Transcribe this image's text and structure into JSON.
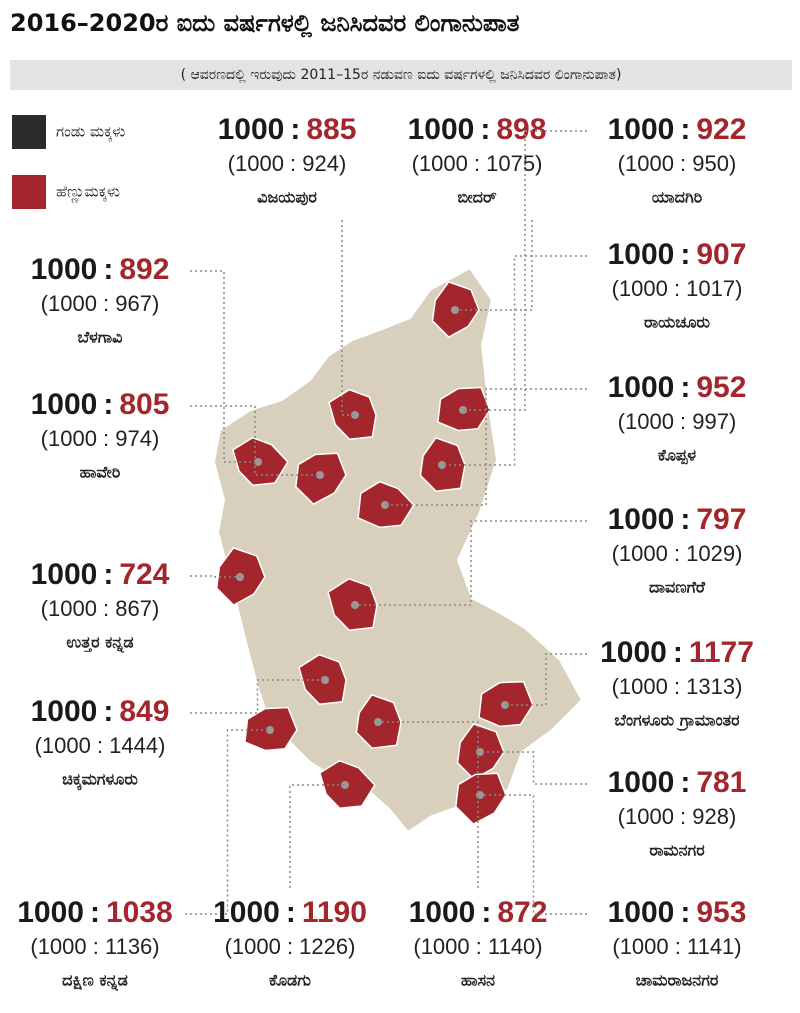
{
  "header": {
    "title": "2016–2020ರ ಐದು ವರ್ಷಗಳಲ್ಲಿ ಜನಿಸಿದವರ ಲಿಂಗಾನುಪಾತ",
    "subtitle": "( ಆವರಣದಲ್ಲಿ ಇರುವುದು 2011–15ರ ನಡುವಣ ಐದು ವರ್ಷಗಳಲ್ಲಿ ಜನಿಸಿದವರ ಲಿಂಗಾನುಪಾತ)"
  },
  "legend": [
    {
      "label": "ಗಂಡು ಮಕ್ಕಳು",
      "color": "#2b2b2b"
    },
    {
      "label": "ಹೆಣ್ಣುಮಕ್ಕಳು",
      "color": "#a3262d"
    }
  ],
  "separator": ":",
  "districts": [
    {
      "name": "ವಿಜಯಪುರ",
      "male": 1000,
      "female": 885,
      "previous": "(1000 : 924)"
    },
    {
      "name": "ಬೀದರ್",
      "male": 1000,
      "female": 898,
      "previous": "(1000 : 1075)"
    },
    {
      "name": "ಯಾದಗಿರಿ",
      "male": 1000,
      "female": 922,
      "previous": "(1000 : 950)"
    },
    {
      "name": "ಬೆಳಗಾವಿ",
      "male": 1000,
      "female": 892,
      "previous": "(1000 : 967)"
    },
    {
      "name": "ರಾಯಚೂರು",
      "male": 1000,
      "female": 907,
      "previous": "(1000 : 1017)"
    },
    {
      "name": "ಹಾವೇರಿ",
      "male": 1000,
      "female": 805,
      "previous": "(1000 : 974)"
    },
    {
      "name": "ಕೊಪ್ಪಳ",
      "male": 1000,
      "female": 952,
      "previous": "(1000 : 997)"
    },
    {
      "name": "ದಾವಣಗೆರೆ",
      "male": 1000,
      "female": 797,
      "previous": "(1000 : 1029)"
    },
    {
      "name": "ಉತ್ತರ ಕನ್ನಡ",
      "male": 1000,
      "female": 724,
      "previous": "(1000 : 867)"
    },
    {
      "name": "ಬೆಂಗಳೂರು ಗ್ರಾಮಾಂತರ",
      "male": 1000,
      "female": 1177,
      "previous": "(1000 : 1313)"
    },
    {
      "name": "ಚಿಕ್ಕಮಗಳೂರು",
      "male": 1000,
      "female": 849,
      "previous": "(1000 : 1444)"
    },
    {
      "name": "ರಾಮನಗರ",
      "male": 1000,
      "female": 781,
      "previous": "(1000 : 928)"
    },
    {
      "name": "ದಕ್ಷಿಣ ಕನ್ನಡ",
      "male": 1000,
      "female": 1038,
      "previous": "(1000 : 1136)"
    },
    {
      "name": "ಕೊಡಗು",
      "male": 1000,
      "female": 1190,
      "previous": "(1000 : 1226)"
    },
    {
      "name": "ಹಾಸನ",
      "male": 1000,
      "female": 872,
      "previous": "(1000 : 1140)"
    },
    {
      "name": "ಚಾಮರಾಜನಗರ",
      "male": 1000,
      "female": 953,
      "previous": "(1000 : 1141)"
    }
  ]
}
